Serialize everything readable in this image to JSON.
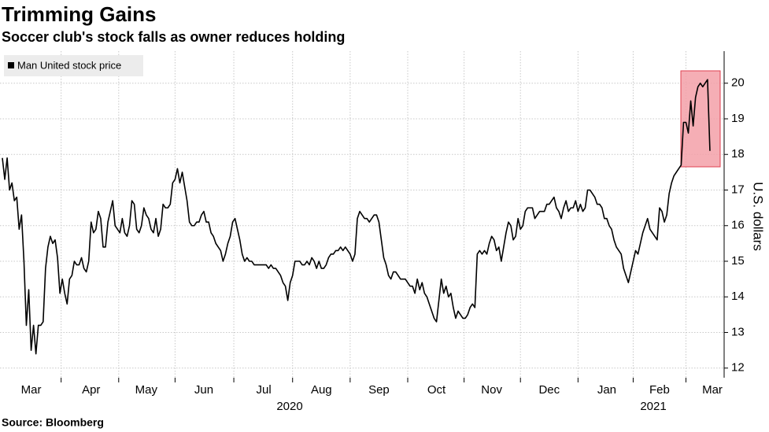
{
  "chart_data": {
    "type": "line",
    "title": "Trimming Gains",
    "subtitle": "Soccer club's stock falls as owner reduces holding",
    "source": "Source: Bloomberg",
    "y_label": "U.S. dollars",
    "year_labels": [
      "2020",
      "2021"
    ],
    "categories": [
      null,
      null,
      null,
      null,
      null,
      null,
      null,
      null,
      null,
      null,
      null,
      null,
      "Mar",
      null,
      null,
      null,
      null,
      null,
      null,
      null,
      null,
      null,
      null,
      null,
      null,
      null,
      null,
      null,
      null,
      null,
      null,
      null,
      null,
      null,
      null,
      null,
      null,
      "Apr",
      null,
      null,
      null,
      null,
      null,
      null,
      null,
      null,
      null,
      null,
      null,
      null,
      null,
      null,
      null,
      null,
      null,
      null,
      null,
      null,
      null,
      null,
      "May",
      null,
      null,
      null,
      null,
      null,
      null,
      null,
      null,
      null,
      null,
      null,
      null,
      null,
      null,
      null,
      null,
      null,
      null,
      null,
      null,
      null,
      null,
      null,
      "Jun",
      null,
      null,
      null,
      null,
      null,
      null,
      null,
      null,
      null,
      null,
      null,
      null,
      null,
      null,
      null,
      null,
      null,
      null,
      null,
      null,
      null,
      null,
      null,
      null,
      "Jul",
      null,
      null,
      null,
      null,
      null,
      null,
      null,
      null,
      null,
      null,
      null,
      null,
      null,
      null,
      null,
      null,
      null,
      null,
      null,
      null,
      null,
      null,
      null,
      "Aug",
      null,
      null,
      null,
      null,
      null,
      null,
      null,
      null,
      null,
      null,
      null,
      null,
      null,
      null,
      null,
      null,
      null,
      null,
      null,
      null,
      null,
      null,
      null,
      "Sep",
      null,
      null,
      null,
      null,
      null,
      null,
      null,
      null,
      null,
      null,
      null,
      null,
      null,
      null,
      null,
      null,
      null,
      null,
      null,
      null,
      null,
      null,
      null,
      "Oct",
      null,
      null,
      null,
      null,
      null,
      null,
      null,
      null,
      null,
      null,
      null,
      null,
      null,
      null,
      null,
      null,
      null,
      null,
      null,
      null,
      null,
      null,
      "Nov",
      null,
      null,
      null,
      null,
      null,
      null,
      null,
      null,
      null,
      null,
      null,
      null,
      null,
      null,
      null,
      null,
      null,
      null,
      null,
      null,
      null,
      null,
      null,
      "Dec",
      null,
      null,
      null,
      null,
      null,
      null,
      null,
      null,
      null,
      null,
      null,
      null,
      null,
      null,
      null,
      null,
      null,
      null,
      null,
      null,
      null,
      null,
      null,
      "Jan",
      null,
      null,
      null,
      null,
      null,
      null,
      null,
      null,
      null,
      null,
      null,
      null,
      null,
      null,
      null,
      null,
      null,
      null,
      null,
      null,
      null,
      "Feb",
      null,
      null,
      null,
      null,
      null,
      null,
      null,
      null,
      null,
      null,
      null,
      null,
      null,
      null,
      null,
      null,
      null,
      null,
      null,
      null,
      null,
      "Mar"
    ],
    "series": [
      {
        "name": "Man United stock price",
        "color": "#000000",
        "values": [
          17.9,
          17.3,
          17.9,
          17.0,
          17.2,
          16.7,
          16.8,
          15.9,
          16.3,
          15.0,
          13.2,
          14.2,
          12.5,
          13.2,
          12.4,
          13.2,
          13.2,
          13.3,
          14.8,
          15.4,
          15.7,
          15.5,
          15.6,
          15.1,
          14.1,
          14.5,
          14.1,
          13.8,
          14.5,
          14.6,
          15.0,
          14.9,
          14.9,
          15.1,
          14.8,
          14.7,
          15.0,
          16.1,
          15.8,
          15.9,
          16.4,
          16.2,
          15.4,
          15.4,
          16.1,
          16.4,
          16.7,
          16.0,
          15.9,
          15.8,
          16.2,
          15.8,
          15.7,
          16.0,
          16.7,
          16.6,
          15.9,
          15.8,
          16.0,
          16.5,
          16.3,
          16.2,
          15.9,
          15.8,
          16.2,
          15.7,
          15.9,
          16.6,
          16.5,
          16.5,
          16.6,
          17.2,
          17.3,
          17.6,
          17.2,
          17.5,
          17.1,
          16.7,
          16.1,
          16.0,
          16.0,
          16.1,
          16.1,
          16.3,
          16.4,
          16.1,
          16.1,
          15.8,
          15.7,
          15.5,
          15.4,
          15.3,
          15.0,
          15.2,
          15.5,
          15.7,
          16.1,
          16.2,
          15.9,
          15.6,
          15.2,
          15.0,
          15.1,
          15.0,
          15.0,
          14.9,
          14.9,
          14.9,
          14.9,
          14.9,
          14.9,
          14.8,
          14.9,
          14.8,
          14.8,
          14.7,
          14.6,
          14.4,
          14.3,
          13.9,
          14.4,
          14.6,
          15.0,
          15.0,
          15.0,
          14.9,
          14.9,
          15.0,
          14.9,
          15.1,
          15.0,
          14.8,
          15.0,
          14.8,
          14.8,
          14.9,
          15.1,
          15.2,
          15.2,
          15.3,
          15.3,
          15.4,
          15.3,
          15.4,
          15.3,
          15.2,
          15.0,
          15.2,
          16.2,
          16.4,
          16.3,
          16.2,
          16.2,
          16.1,
          16.2,
          16.3,
          16.3,
          16.1,
          15.6,
          15.1,
          14.9,
          14.6,
          14.5,
          14.7,
          14.7,
          14.6,
          14.5,
          14.5,
          14.5,
          14.4,
          14.3,
          14.3,
          14.1,
          14.5,
          14.2,
          14.4,
          14.1,
          14.0,
          13.8,
          13.6,
          13.4,
          13.3,
          13.9,
          14.5,
          14.1,
          14.3,
          14.0,
          14.1,
          13.7,
          13.4,
          13.6,
          13.5,
          13.4,
          13.4,
          13.5,
          13.7,
          13.8,
          13.7,
          15.2,
          15.3,
          15.2,
          15.3,
          15.2,
          15.5,
          15.7,
          15.6,
          15.3,
          15.4,
          15.0,
          15.4,
          15.8,
          16.1,
          16.0,
          15.6,
          15.7,
          16.2,
          15.9,
          16.0,
          16.4,
          16.5,
          16.5,
          16.5,
          16.2,
          16.3,
          16.4,
          16.4,
          16.4,
          16.6,
          16.6,
          16.7,
          16.8,
          16.5,
          16.4,
          16.2,
          16.5,
          16.7,
          16.4,
          16.5,
          16.5,
          16.7,
          16.4,
          16.6,
          16.4,
          16.5,
          17.0,
          17.0,
          16.9,
          16.8,
          16.6,
          16.6,
          16.5,
          16.2,
          16.2,
          16.0,
          15.9,
          15.6,
          15.4,
          15.3,
          15.2,
          14.8,
          14.6,
          14.4,
          14.7,
          15.0,
          15.3,
          15.2,
          15.5,
          15.8,
          16.0,
          16.2,
          15.9,
          15.8,
          15.7,
          15.6,
          16.5,
          16.4,
          16.1,
          16.3,
          16.9,
          17.2,
          17.4,
          17.5,
          17.6,
          17.7,
          18.9,
          18.9,
          18.6,
          19.5,
          18.8,
          19.6,
          19.9,
          20.0,
          19.9,
          20.0,
          20.1,
          18.1,
          null
        ]
      }
    ],
    "ylim": [
      11.73,
      20.9
    ],
    "yticks": [
      12,
      13,
      14,
      15,
      16,
      17,
      18,
      19,
      20
    ],
    "y_axis_side": "right",
    "grid": true,
    "legend": "top-left"
  }
}
